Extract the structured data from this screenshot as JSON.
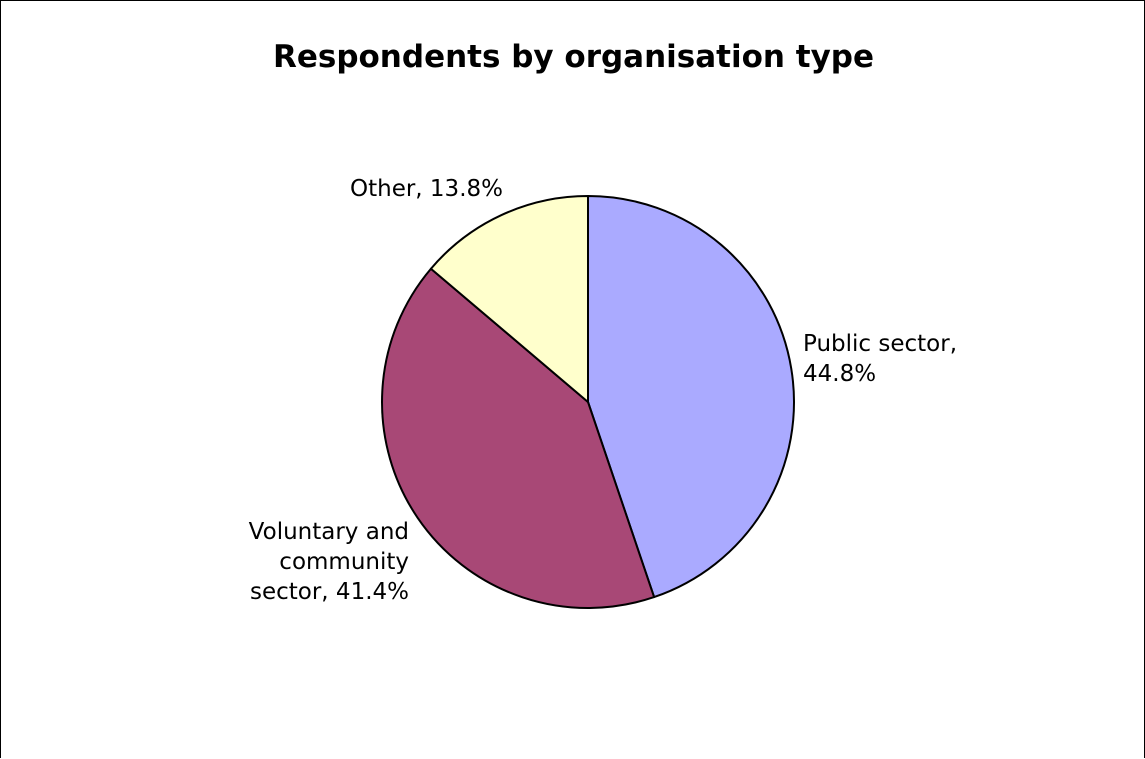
{
  "chart_data": {
    "type": "pie",
    "title": "Respondents by organisation type",
    "start_angle_deg": 0,
    "direction": "clockwise",
    "slices": [
      {
        "name": "Public sector",
        "value": 44.8,
        "label_lines": [
          "Public sector,",
          "44.8%"
        ],
        "label_align": "start",
        "color": "#aaaaff"
      },
      {
        "name": "Voluntary and community sector",
        "value": 41.4,
        "label_lines": [
          "Voluntary and",
          "community",
          "sector, 41.4%"
        ],
        "label_align": "end",
        "color": "#a84876"
      },
      {
        "name": "Other",
        "value": 13.8,
        "label_lines": [
          "Other, 13.8%"
        ],
        "label_align": "end",
        "color": "#ffffcc"
      }
    ]
  }
}
